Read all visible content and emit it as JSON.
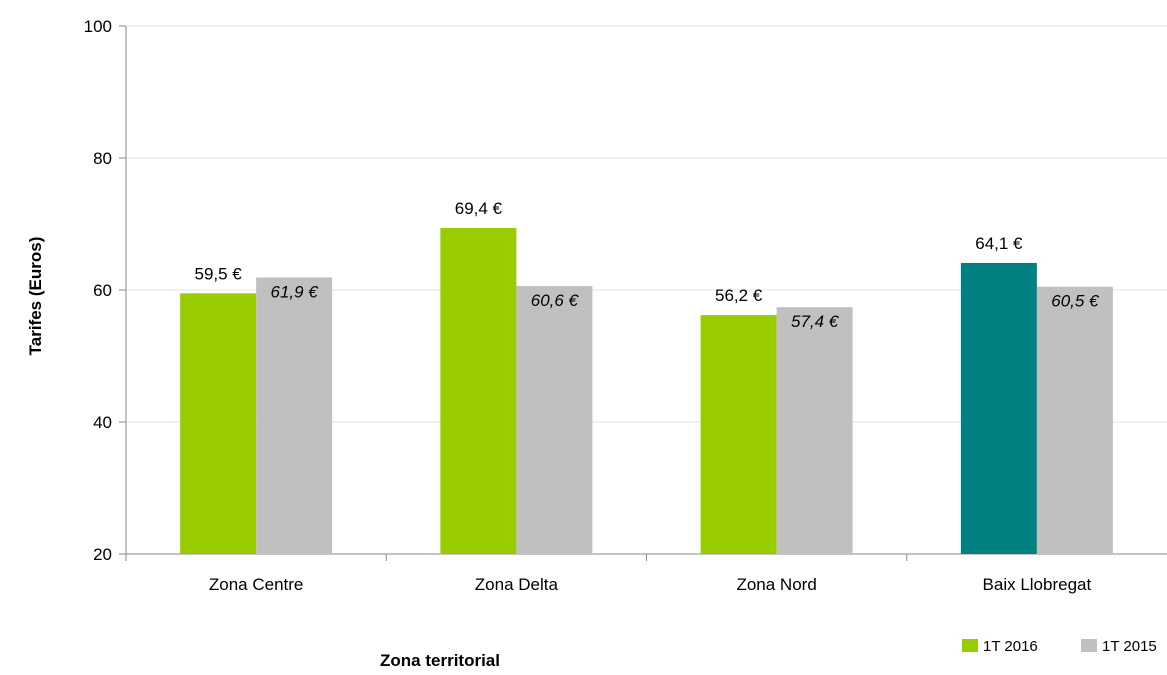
{
  "chart_data": {
    "type": "bar",
    "title": "",
    "xlabel": "Zona territorial",
    "ylabel": "Tarifes (Euros)",
    "ylim": [
      20,
      100
    ],
    "yticks": [
      20,
      40,
      60,
      80,
      100
    ],
    "grid": true,
    "legend_position": "bottom-right",
    "categories": [
      "Zona Centre",
      "Zona Delta",
      "Zona Nord",
      "Baix Llobregat"
    ],
    "series": [
      {
        "name": "1T 2016",
        "values": [
          59.5,
          69.4,
          56.2,
          64.1
        ],
        "labels": [
          "59,5 €",
          "69,4 €",
          "56,2 €",
          "64,1 €"
        ],
        "color": "#99cc00",
        "point_colors": [
          "#99cc00",
          "#99cc00",
          "#99cc00",
          "#008080"
        ]
      },
      {
        "name": "1T 2015",
        "values": [
          61.9,
          60.6,
          57.4,
          60.5
        ],
        "labels": [
          "61,9 €",
          "60,6 €",
          "57,4 €",
          "60,5 €"
        ],
        "color": "#c0c0c0",
        "label_style": "italic"
      }
    ]
  }
}
